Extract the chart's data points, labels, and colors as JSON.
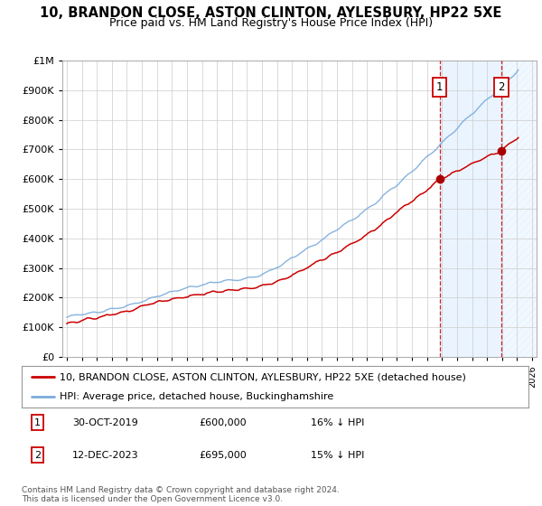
{
  "title": "10, BRANDON CLOSE, ASTON CLINTON, AYLESBURY, HP22 5XE",
  "subtitle": "Price paid vs. HM Land Registry's House Price Index (HPI)",
  "legend_line1": "10, BRANDON CLOSE, ASTON CLINTON, AYLESBURY, HP22 5XE (detached house)",
  "legend_line2": "HPI: Average price, detached house, Buckinghamshire",
  "annotation1_label": "1",
  "annotation1_date": "30-OCT-2019",
  "annotation1_price": 600000,
  "annotation1_pct": "16% ↓ HPI",
  "annotation2_label": "2",
  "annotation2_date": "12-DEC-2023",
  "annotation2_price": 695000,
  "annotation2_pct": "15% ↓ HPI",
  "footer": "Contains HM Land Registry data © Crown copyright and database right 2024.\nThis data is licensed under the Open Government Licence v3.0.",
  "hpi_color": "#7aabdb",
  "price_color": "#cc0000",
  "marker_color": "#aa0000",
  "annotation_box_color": "#cc0000",
  "dashed_line_color": "#cc0000",
  "shade_color": "#ddeeff",
  "ylim_min": 0,
  "ylim_max": 1000000,
  "background_color": "#ffffff",
  "plot_bg_color": "#ffffff",
  "title_fontsize": 10.5,
  "subtitle_fontsize": 9,
  "axis_fontsize": 8,
  "legend_fontsize": 8,
  "footer_fontsize": 6.5,
  "sale1_year": 2019.83,
  "sale1_price": 600000,
  "sale2_year": 2023.95,
  "sale2_price": 695000,
  "xmin": 1994.5,
  "xmax": 2026.5
}
